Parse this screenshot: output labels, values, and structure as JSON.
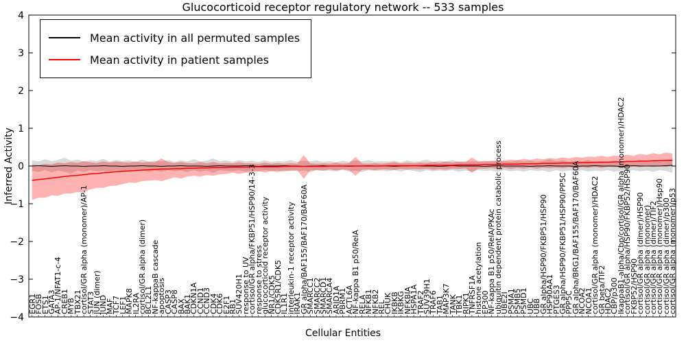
{
  "figure": {
    "title": "Glucocorticoid receptor regulatory network -- 533 samples",
    "xlabel": "Cellular Entities",
    "ylabel": "Inferred Activity",
    "background": "#ffffff"
  },
  "legend": {
    "items": [
      {
        "label": "Mean activity in all permuted samples",
        "color": "#000000"
      },
      {
        "label": "Mean activity in patient samples",
        "color": "#ff0000"
      }
    ]
  },
  "axis": {
    "yticks": [
      4,
      3,
      2,
      1,
      0,
      -1,
      -2,
      -3,
      -4
    ],
    "ylim": [
      -4,
      4
    ]
  },
  "chart_data": {
    "type": "line",
    "title": "Glucocorticoid receptor regulatory network -- 533 samples",
    "xlabel": "Cellular Entities",
    "ylabel": "Inferred Activity",
    "ylim": [
      -4,
      4
    ],
    "legend_position": "upper left",
    "grid": false,
    "categories": [
      "EGR1",
      "FOSB",
      "ETS1",
      "GATA3",
      "AP-1/NFAT1-c-4",
      "CREB1",
      "MYB",
      "TBX21",
      "cortisol/GR alpha (monomer)/AP-1",
      "STAT3",
      "JUN (dimer)",
      "JUND",
      "MAF",
      "TCF7",
      "LEF1",
      "MAPK8",
      "IL2RA",
      "cortisol/GR alpha (dimer)",
      "BCL2L1",
      "NF-kappaB cascade",
      "apoptosis",
      "CASP3",
      "CASP8",
      "BAX",
      "BAK1",
      "CDKN1A",
      "CCND1",
      "CCND3",
      "CDK4",
      "CDK6",
      "E2F1",
      "RB1",
      "SUV420H1",
      "response to UV",
      "cortisol/GR alpha/FKBP51/HSP90/14-3-3",
      "response to stress",
      "glucocorticoid receptor activity",
      "NR1/CDK5",
      "CDK5R1/CDK5",
      "IL1R1",
      "interleukin-1 receptor activity",
      "IRAK1",
      "GR alpha/BAF155/BAF170/BAF60A",
      "SMARCC1",
      "SMARCC2",
      "SMARCD1",
      "SMARCA4",
      "ARID1A",
      "PBRM1",
      "ACTL6A",
      "NF-kappa B1 p50/RelA",
      "RELA",
      "NFKB1",
      "NFKB2",
      "REL",
      "CHUK",
      "IKBKB",
      "IKBKG",
      "NFKBIA",
      "HSPA1A",
      "TRAF2",
      "SUV39H1",
      "TRAF6",
      "TAB1",
      "MAP3K7",
      "TANK",
      "TBK1",
      "RIPK1",
      "TNFRSF1A",
      "histone acetylation",
      "EP300",
      "NF-kappa B1 p50/RelA/PKAc",
      "ubiquitin dependent protein catabolic process",
      "UBE2I",
      "PSMA1",
      "PSMB5",
      "PSMD1",
      "UBC",
      "UBB",
      "GR alpha/HSP90/FKBP51/HSP90",
      "HSP90AA1",
      "PTGES3",
      "GR alpha/HSP90/FKBP51/HSP90/PP5C",
      "PPP5C",
      "GR alpha/BRG1/BAF155/BAF170/BAF60A",
      "NCOA2",
      "NCOA1",
      "cortisol/GR alpha (monomer)/HDAC2",
      "GR beta/TIF2",
      "HDAC2",
      "CBP/p300",
      "IkappaB1-alpha/Cbp/cortisol/GR alpha (monomer)/HDAC2",
      "cortisol/GR alpha/HSP90/FKBP52/HSP90",
      "FKBP52/HSP90",
      "cortisol/GR alpha (dimer)/HSP90",
      "cortisol/GR alpha (monomer)",
      "cortisol/GR alpha (dimer)/TIF2",
      "cortisol/GR alpha (monomer)/Hsp90",
      "cortisol/GR alpha (dimer)/p300",
      "cortisol/GR alpha (monomer)/p53"
    ],
    "series": [
      {
        "name": "Mean activity in all permuted samples",
        "color": "#000000",
        "values": [
          0.0,
          0.01,
          0.0,
          -0.01,
          0.0,
          0.01,
          0.0,
          0.0,
          -0.01,
          0.0,
          0.0,
          0.01,
          0.0,
          0.0,
          -0.01,
          0.0,
          0.0,
          0.01,
          0.0,
          0.0,
          -0.01,
          0.0,
          0.0,
          0.01,
          0.0,
          0.0,
          0.0,
          -0.01,
          0.0,
          0.01,
          0.0,
          0.0,
          0.0,
          0.01,
          0.0,
          -0.01,
          0.0,
          0.0,
          0.0,
          0.01,
          0.0,
          0.0,
          -0.01,
          0.0,
          0.0,
          0.01,
          0.0,
          0.0,
          0.0,
          -0.01,
          0.0,
          0.0,
          0.01,
          0.0,
          0.0,
          0.0,
          -0.01,
          0.0,
          0.0,
          0.01,
          0.0,
          0.0,
          0.0,
          -0.01,
          0.0,
          0.01,
          0.0,
          0.0,
          0.0,
          0.0,
          -0.01,
          0.0,
          0.01,
          0.0,
          0.0,
          0.0,
          0.0,
          -0.01,
          0.0,
          0.0,
          0.01,
          0.0,
          0.0,
          0.0,
          -0.01,
          0.0,
          0.0,
          0.01,
          0.0,
          0.0,
          0.0,
          -0.01,
          0.0,
          0.01,
          0.0,
          0.0,
          0.0,
          0.0,
          0.01,
          0.02
        ]
      },
      {
        "name": "Mean activity in patient samples",
        "color": "#ff0000",
        "values": [
          -0.38,
          -0.36,
          -0.34,
          -0.32,
          -0.3,
          -0.28,
          -0.26,
          -0.25,
          -0.23,
          -0.21,
          -0.2,
          -0.18,
          -0.17,
          -0.15,
          -0.14,
          -0.13,
          -0.12,
          -0.11,
          -0.1,
          -0.09,
          -0.08,
          -0.08,
          -0.07,
          -0.07,
          -0.06,
          -0.06,
          -0.05,
          -0.05,
          -0.04,
          -0.04,
          -0.04,
          -0.03,
          -0.03,
          -0.03,
          -0.02,
          -0.02,
          -0.02,
          -0.02,
          -0.02,
          -0.01,
          -0.01,
          -0.01,
          -0.01,
          -0.01,
          -0.01,
          -0.01,
          0.0,
          0.0,
          0.0,
          0.0,
          0.0,
          0.0,
          0.0,
          0.0,
          0.0,
          0.01,
          0.01,
          0.01,
          0.01,
          0.01,
          0.01,
          0.02,
          0.02,
          0.02,
          0.02,
          0.02,
          0.03,
          0.03,
          0.03,
          0.03,
          0.04,
          0.04,
          0.04,
          0.05,
          0.05,
          0.05,
          0.06,
          0.06,
          0.06,
          0.07,
          0.07,
          0.07,
          0.08,
          0.08,
          0.08,
          0.09,
          0.09,
          0.1,
          0.1,
          0.1,
          0.11,
          0.11,
          0.12,
          0.12,
          0.13,
          0.13,
          0.14,
          0.14,
          0.15,
          0.15
        ]
      }
    ],
    "bands": [
      {
        "name": "permuted-range",
        "color": "#808080",
        "opacity": 0.3,
        "upper": [
          0.15,
          0.12,
          0.18,
          0.13,
          0.16,
          0.22,
          0.14,
          0.17,
          0.12,
          0.15,
          0.13,
          0.19,
          0.12,
          0.16,
          0.13,
          0.15,
          0.11,
          0.17,
          0.12,
          0.14,
          0.12,
          0.16,
          0.11,
          0.15,
          0.12,
          0.18,
          0.12,
          0.14,
          0.2,
          0.13,
          0.15,
          0.11,
          0.16,
          0.12,
          0.14,
          0.11,
          0.15,
          0.11,
          0.13,
          0.12,
          0.16,
          0.11,
          0.14,
          0.12,
          0.15,
          0.11,
          0.13,
          0.1,
          0.14,
          0.11,
          0.15,
          0.12,
          0.16,
          0.11,
          0.13,
          0.12,
          0.14,
          0.1,
          0.15,
          0.11,
          0.13,
          0.17,
          0.11,
          0.14,
          0.12,
          0.16,
          0.11,
          0.13,
          0.12,
          0.14,
          0.11,
          0.15,
          0.12,
          0.13,
          0.11,
          0.16,
          0.12,
          0.14,
          0.11,
          0.13,
          0.18,
          0.12,
          0.15,
          0.11,
          0.14,
          0.12,
          0.16,
          0.11,
          0.13,
          0.12,
          0.15,
          0.11,
          0.14,
          0.12,
          0.16,
          0.12,
          0.14,
          0.11,
          0.15,
          0.2
        ],
        "lower": [
          -0.13,
          -0.16,
          -0.11,
          -0.17,
          -0.12,
          -0.15,
          -0.2,
          -0.12,
          -0.16,
          -0.11,
          -0.14,
          -0.12,
          -0.17,
          -0.11,
          -0.15,
          -0.12,
          -0.14,
          -0.11,
          -0.16,
          -0.12,
          -0.15,
          -0.11,
          -0.14,
          -0.12,
          -0.16,
          -0.11,
          -0.15,
          -0.12,
          -0.18,
          -0.11,
          -0.13,
          -0.14,
          -0.11,
          -0.15,
          -0.12,
          -0.14,
          -0.11,
          -0.13,
          -0.12,
          -0.15,
          -0.11,
          -0.14,
          -0.12,
          -0.16,
          -0.11,
          -0.13,
          -0.12,
          -0.14,
          -0.1,
          -0.15,
          -0.12,
          -0.16,
          -0.11,
          -0.13,
          -0.12,
          -0.14,
          -0.11,
          -0.15,
          -0.1,
          -0.13,
          -0.16,
          -0.11,
          -0.14,
          -0.12,
          -0.13,
          -0.11,
          -0.15,
          -0.12,
          -0.14,
          -0.11,
          -0.13,
          -0.12,
          -0.16,
          -0.11,
          -0.14,
          -0.12,
          -0.15,
          -0.11,
          -0.13,
          -0.12,
          -0.16,
          -0.11,
          -0.14,
          -0.12,
          -0.13,
          -0.11,
          -0.15,
          -0.12,
          -0.14,
          -0.11,
          -0.16,
          -0.12,
          -0.13,
          -0.11,
          -0.14,
          -0.12,
          -0.15,
          -0.11,
          -0.13,
          -0.18
        ]
      },
      {
        "name": "patient-range",
        "color": "#ff0000",
        "opacity": 0.3,
        "upper": [
          0.04,
          0.02,
          0.06,
          0.04,
          0.09,
          0.07,
          0.11,
          0.08,
          0.13,
          0.1,
          0.08,
          0.12,
          0.09,
          0.12,
          0.1,
          0.09,
          0.12,
          0.09,
          0.11,
          0.1,
          0.2,
          0.11,
          0.08,
          0.11,
          0.08,
          0.07,
          0.11,
          0.07,
          0.11,
          0.07,
          0.08,
          0.07,
          0.1,
          0.07,
          0.07,
          0.06,
          0.09,
          0.06,
          0.08,
          0.06,
          0.08,
          0.06,
          0.29,
          0.07,
          0.06,
          0.07,
          0.06,
          0.09,
          0.06,
          0.08,
          0.24,
          0.07,
          0.06,
          0.08,
          0.06,
          0.08,
          0.1,
          0.07,
          0.09,
          0.07,
          0.09,
          0.08,
          0.11,
          0.09,
          0.12,
          0.09,
          0.12,
          0.1,
          0.23,
          0.11,
          0.14,
          0.12,
          0.15,
          0.14,
          0.17,
          0.15,
          0.19,
          0.16,
          0.2,
          0.18,
          0.21,
          0.19,
          0.23,
          0.2,
          0.24,
          0.22,
          0.25,
          0.24,
          0.27,
          0.24,
          0.28,
          0.26,
          0.3,
          0.27,
          0.32,
          0.29,
          0.34,
          0.31,
          0.36,
          0.33
        ],
        "lower": [
          -0.9,
          -0.84,
          -0.84,
          -0.78,
          -0.79,
          -0.73,
          -0.73,
          -0.69,
          -0.69,
          -0.62,
          -0.58,
          -0.58,
          -0.53,
          -0.52,
          -0.48,
          -0.44,
          -0.45,
          -0.4,
          -0.39,
          -0.37,
          -0.4,
          -0.35,
          -0.3,
          -0.33,
          -0.28,
          -0.26,
          -0.28,
          -0.24,
          -0.26,
          -0.22,
          -0.21,
          -0.18,
          -0.21,
          -0.18,
          -0.16,
          -0.14,
          -0.17,
          -0.14,
          -0.16,
          -0.12,
          -0.13,
          -0.11,
          -0.34,
          -0.12,
          -0.11,
          -0.12,
          -0.09,
          -0.12,
          -0.09,
          -0.11,
          -0.26,
          -0.1,
          -0.09,
          -0.11,
          -0.09,
          -0.09,
          -0.11,
          -0.08,
          -0.1,
          -0.08,
          -0.09,
          -0.07,
          -0.1,
          -0.08,
          -0.1,
          -0.07,
          -0.08,
          -0.06,
          -0.18,
          -0.07,
          -0.07,
          -0.05,
          -0.08,
          -0.05,
          -0.08,
          -0.05,
          -0.07,
          -0.04,
          -0.07,
          -0.04,
          -0.06,
          -0.04,
          -0.06,
          -0.03,
          -0.06,
          -0.03,
          -0.05,
          -0.02,
          -0.05,
          -0.02,
          -0.03,
          -0.02,
          -0.03,
          -0.01,
          -0.03,
          0.0,
          -0.02,
          0.0,
          -0.03,
          0.01
        ]
      }
    ]
  }
}
